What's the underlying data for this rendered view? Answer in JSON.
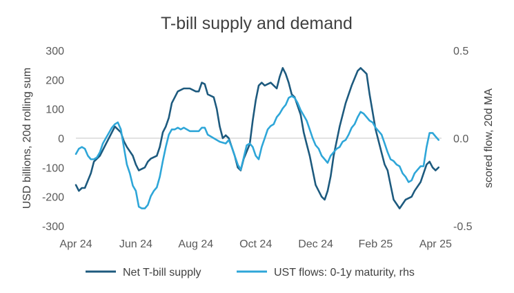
{
  "chart_data": {
    "type": "line",
    "title": "T-bill supply and demand",
    "ylabel": "USD billions, 20d rolling sum",
    "y2label": "scored flow, 20d MA",
    "ylim": [
      -300,
      300
    ],
    "y2lim": [
      -0.5,
      0.5
    ],
    "yticks": [
      300,
      200,
      100,
      0,
      -100,
      -200,
      -300
    ],
    "y2ticks": [
      {
        "value": 0.5,
        "label": "0.5"
      },
      {
        "value": 0.0,
        "label": "0.0"
      },
      {
        "value": -0.5,
        "label": "-0.5"
      }
    ],
    "xlim": [
      0,
      12.2
    ],
    "xticks": [
      {
        "pos": 0,
        "label": "Apr 24"
      },
      {
        "pos": 2,
        "label": "Jun 24"
      },
      {
        "pos": 4,
        "label": "Aug 24"
      },
      {
        "pos": 6,
        "label": "Oct 24"
      },
      {
        "pos": 8,
        "label": "Dec 24"
      },
      {
        "pos": 10,
        "label": "Feb 25"
      },
      {
        "pos": 12,
        "label": "Apr 25"
      }
    ],
    "legend_position": "bottom",
    "grid": false,
    "series": [
      {
        "name": "Net T-bill supply",
        "axis": "left",
        "color": "#1d5a7e",
        "x": [
          0,
          0.1,
          0.2,
          0.3,
          0.5,
          0.6,
          0.8,
          1.0,
          1.1,
          1.3,
          1.5,
          1.6,
          1.7,
          1.9,
          2.0,
          2.1,
          2.3,
          2.4,
          2.5,
          2.7,
          2.8,
          2.9,
          3.0,
          3.1,
          3.2,
          3.3,
          3.4,
          3.6,
          3.8,
          4.0,
          4.1,
          4.2,
          4.3,
          4.4,
          4.6,
          4.7,
          4.8,
          4.9,
          5.0,
          5.1,
          5.2,
          5.3,
          5.4,
          5.5,
          5.6,
          5.8,
          5.9,
          6.0,
          6.1,
          6.2,
          6.3,
          6.5,
          6.7,
          6.8,
          6.9,
          7.0,
          7.1,
          7.2,
          7.3,
          7.4,
          7.5,
          7.6,
          7.7,
          7.8,
          7.9,
          8.0,
          8.2,
          8.3,
          8.4,
          8.5,
          8.6,
          8.8,
          9.0,
          9.2,
          9.4,
          9.5,
          9.6,
          9.7,
          9.8,
          10.0,
          10.2,
          10.3,
          10.4,
          10.5,
          10.6,
          10.8,
          11.0,
          11.2,
          11.3,
          11.5,
          11.7,
          11.8,
          11.9,
          12.0,
          12.1
        ],
        "values": [
          -160,
          -180,
          -170,
          -170,
          -120,
          -80,
          -60,
          -20,
          0,
          40,
          20,
          -10,
          -30,
          -60,
          -90,
          -110,
          -100,
          -80,
          -70,
          -60,
          -30,
          20,
          40,
          70,
          120,
          140,
          160,
          170,
          170,
          160,
          160,
          190,
          185,
          150,
          140,
          100,
          40,
          0,
          10,
          0,
          -30,
          -60,
          -100,
          -110,
          -70,
          -20,
          60,
          130,
          180,
          190,
          180,
          190,
          170,
          210,
          240,
          220,
          190,
          150,
          140,
          110,
          80,
          20,
          -20,
          -60,
          -110,
          -160,
          -200,
          -210,
          -180,
          -130,
          -60,
          40,
          120,
          180,
          230,
          240,
          230,
          220,
          150,
          30,
          -50,
          -90,
          -110,
          -160,
          -210,
          -240,
          -210,
          -200,
          -180,
          -150,
          -90,
          -80,
          -100,
          -110,
          -100
        ]
      },
      {
        "name": "UST flows: 0-1y maturity, rhs",
        "axis": "right",
        "color": "#2ea6d8",
        "x": [
          0,
          0.1,
          0.2,
          0.3,
          0.4,
          0.5,
          0.6,
          0.7,
          0.8,
          0.9,
          1.0,
          1.1,
          1.2,
          1.3,
          1.4,
          1.5,
          1.6,
          1.7,
          1.8,
          1.9,
          2.0,
          2.1,
          2.2,
          2.3,
          2.4,
          2.5,
          2.6,
          2.7,
          2.8,
          2.9,
          3.0,
          3.1,
          3.2,
          3.3,
          3.4,
          3.5,
          3.6,
          3.8,
          4.0,
          4.1,
          4.2,
          4.3,
          4.4,
          4.6,
          4.8,
          5.0,
          5.1,
          5.2,
          5.3,
          5.4,
          5.5,
          5.6,
          5.7,
          5.8,
          5.9,
          6.0,
          6.1,
          6.2,
          6.3,
          6.4,
          6.5,
          6.6,
          6.7,
          6.8,
          6.9,
          7.0,
          7.1,
          7.2,
          7.3,
          7.4,
          7.5,
          7.6,
          7.7,
          7.8,
          7.9,
          8.0,
          8.1,
          8.2,
          8.3,
          8.4,
          8.5,
          8.6,
          8.7,
          8.8,
          8.9,
          9.0,
          9.1,
          9.2,
          9.3,
          9.4,
          9.5,
          9.6,
          9.7,
          9.8,
          9.9,
          10.0,
          10.1,
          10.2,
          10.3,
          10.4,
          10.5,
          10.6,
          10.7,
          10.8,
          10.9,
          11.0,
          11.1,
          11.2,
          11.3,
          11.4,
          11.5,
          11.6,
          11.7,
          11.8,
          11.9,
          12.0,
          12.1
        ],
        "values": [
          -0.09,
          -0.06,
          -0.05,
          -0.06,
          -0.1,
          -0.12,
          -0.12,
          -0.11,
          -0.08,
          -0.03,
          0.0,
          0.03,
          0.06,
          0.08,
          0.09,
          0.05,
          -0.05,
          -0.15,
          -0.2,
          -0.27,
          -0.3,
          -0.39,
          -0.4,
          -0.4,
          -0.38,
          -0.33,
          -0.3,
          -0.28,
          -0.22,
          -0.13,
          -0.05,
          0.02,
          0.05,
          0.05,
          0.06,
          0.05,
          0.06,
          0.04,
          0.04,
          0.04,
          0.06,
          0.06,
          0.02,
          0.0,
          -0.02,
          -0.03,
          -0.01,
          -0.05,
          -0.1,
          -0.15,
          -0.18,
          -0.11,
          -0.04,
          -0.03,
          -0.05,
          -0.1,
          -0.12,
          -0.05,
          0.0,
          0.05,
          0.07,
          0.08,
          0.12,
          0.14,
          0.17,
          0.19,
          0.23,
          0.24,
          0.23,
          0.2,
          0.16,
          0.13,
          0.1,
          0.05,
          0.0,
          -0.04,
          -0.06,
          -0.1,
          -0.12,
          -0.14,
          -0.1,
          -0.08,
          -0.06,
          -0.05,
          -0.02,
          -0.01,
          0.02,
          0.06,
          0.08,
          0.12,
          0.15,
          0.14,
          0.12,
          0.1,
          0.09,
          0.06,
          0.04,
          0.02,
          -0.03,
          -0.08,
          -0.12,
          -0.13,
          -0.15,
          -0.16,
          -0.2,
          -0.22,
          -0.25,
          -0.24,
          -0.2,
          -0.18,
          -0.16,
          -0.16,
          -0.05,
          0.03,
          0.03,
          0.01,
          -0.01
        ]
      }
    ]
  }
}
